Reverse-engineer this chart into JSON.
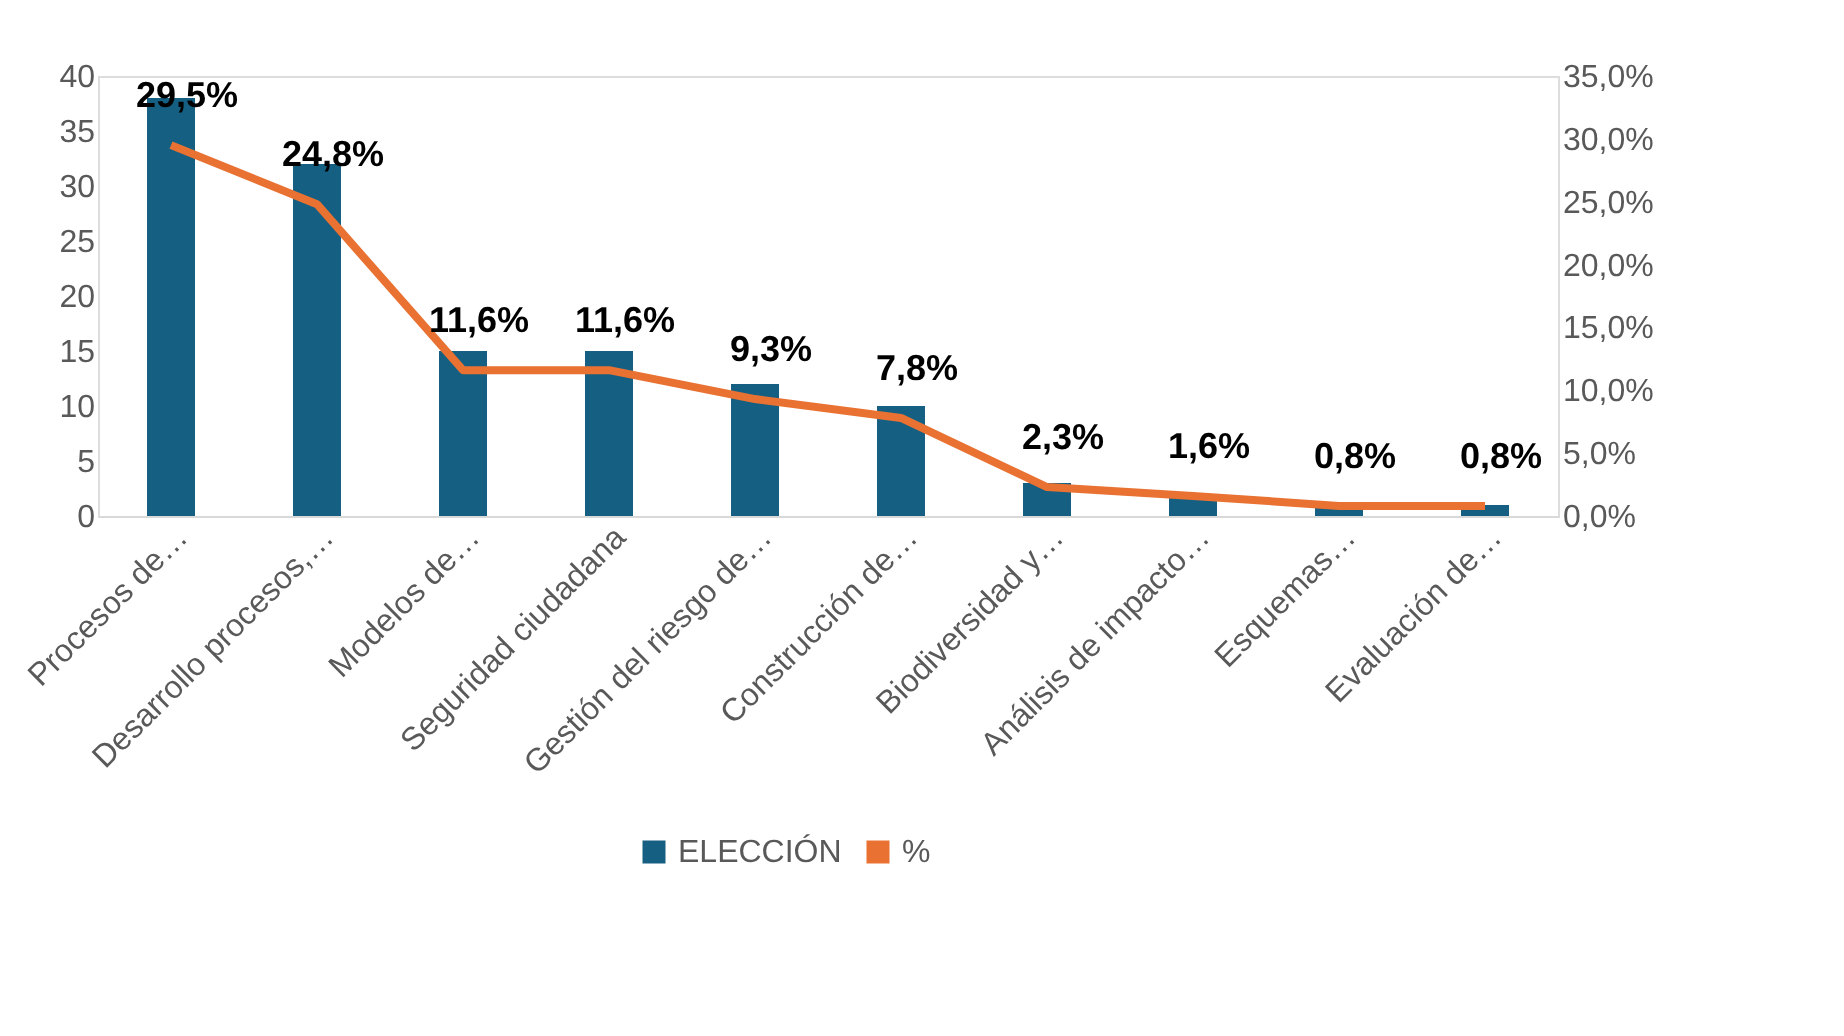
{
  "chart_data": {
    "type": "bar",
    "categories": [
      "Procesos de…",
      "Desarrollo procesos,…",
      "Modelos de…",
      "Seguridad ciudadana",
      "Gestión del riesgo de…",
      "Construcción de…",
      "Biodiversidad y…",
      "Análisis de impacto…",
      "Esquemas…",
      "Evaluación de…"
    ],
    "series": [
      {
        "name": "ELECCIÓN",
        "color": "#156082",
        "values": [
          38,
          32,
          15,
          15,
          12,
          10,
          3,
          2,
          1,
          1
        ]
      },
      {
        "name": "%",
        "type": "line",
        "axis": "y2",
        "color": "#e97132",
        "values": [
          29.5,
          24.8,
          11.6,
          11.6,
          9.3,
          7.8,
          2.3,
          1.6,
          0.8,
          0.8
        ],
        "value_labels": [
          "29,5%",
          "24,8%",
          "11,6%",
          "11,6%",
          "9,3%",
          "7,8%",
          "2,3%",
          "1,6%",
          "0,8%",
          "0,8%"
        ]
      }
    ],
    "ylim": [
      0,
      40
    ],
    "yticks": [
      0,
      5,
      10,
      15,
      20,
      25,
      30,
      35,
      40
    ],
    "y2lim": [
      0,
      35
    ],
    "y2ticks": [
      {
        "value": 0,
        "label": "0,0%"
      },
      {
        "value": 5,
        "label": "5,0%"
      },
      {
        "value": 10,
        "label": "10,0%"
      },
      {
        "value": 15,
        "label": "15,0%"
      },
      {
        "value": 20,
        "label": "20,0%"
      },
      {
        "value": 25,
        "label": "25,0%"
      },
      {
        "value": 30,
        "label": "30,0%"
      },
      {
        "value": 35,
        "label": "35,0%"
      }
    ],
    "grid": false,
    "legend": "bottom",
    "line_style": "solid",
    "marker": "none"
  }
}
